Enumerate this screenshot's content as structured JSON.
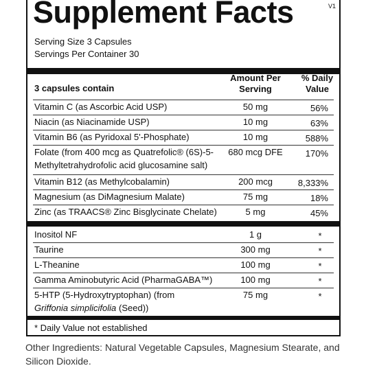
{
  "title": "Supplement Facts",
  "version": "V1",
  "serving_size": "Serving Size 3 Capsules",
  "servings_per_container": "Servings Per Container 30",
  "header": {
    "contain": "3 capsules contain",
    "amount": [
      "Amount Per",
      "Serving"
    ],
    "daily_value": [
      "% Daily",
      "Value"
    ]
  },
  "rows_group1": [
    {
      "name": [
        "Vitamin C (as Ascorbic Acid USP)"
      ],
      "amount": "50 mg",
      "dv": "56%"
    },
    {
      "name": [
        "Niacin (as Niacinamide USP)"
      ],
      "amount": "10 mg",
      "dv": "63%"
    },
    {
      "name": [
        "Vitamin B6 (as Pyridoxal 5'-Phosphate)"
      ],
      "amount": "10 mg",
      "dv": "588%"
    },
    {
      "name": [
        "Folate (from 400 mcg as Quatrefolic® (6S)-5-",
        "Methyltetrahydrofolic acid glucosamine salt)"
      ],
      "amount": "680 mcg DFE",
      "dv": "170%"
    },
    {
      "name": [
        "Vitamin B12 (as Methylcobalamin)"
      ],
      "amount": "200 mcg",
      "dv": "8,333%"
    },
    {
      "name": [
        "Magnesium (as DiMagnesium Malate)"
      ],
      "amount": "75 mg",
      "dv": "18%"
    },
    {
      "name": [
        "Zinc (as TRAACS® Zinc Bisglycinate Chelate)"
      ],
      "amount": "5 mg",
      "dv": "45%"
    }
  ],
  "rows_group2": [
    {
      "name": [
        "Inositol NF"
      ],
      "amount": "1 g",
      "dv": "*"
    },
    {
      "name": [
        "Taurine"
      ],
      "amount": "300 mg",
      "dv": "*"
    },
    {
      "name": [
        "L-Theanine"
      ],
      "amount": "100 mg",
      "dv": "*"
    },
    {
      "name": [
        "Gamma Aminobutyric Acid (PharmaGABA™)"
      ],
      "amount": "100 mg",
      "dv": "*"
    },
    {
      "name": [
        "5-HTP (5-Hydroxytryptophan) (from"
      ],
      "name_italic": "Griffonia simplicifolia",
      "name_end": "(Seed))",
      "amount": "75 mg",
      "dv": "*"
    }
  ],
  "footnote": "* Daily Value not established",
  "other_ingredients": [
    "Other Ingredients: Natural Vegetable Capsules, Magnesium Stearate, and",
    "Silicon Dioxide."
  ]
}
